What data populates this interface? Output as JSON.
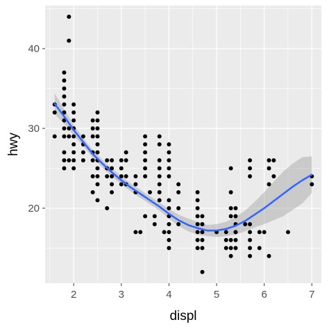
{
  "chart_data": {
    "type": "scatter",
    "title": "",
    "xlabel": "displ",
    "ylabel": "hwy",
    "xlim": [
      1.4,
      7.2
    ],
    "ylim": [
      10.6,
      45.4
    ],
    "x_ticks": [
      2,
      3,
      4,
      5,
      6,
      7
    ],
    "y_ticks": [
      20,
      30,
      40
    ],
    "grid": true,
    "legend": "none",
    "colors": {
      "panel_background": "#ebebeb",
      "grid": "#ffffff",
      "points": "#000000",
      "smooth_line": "#3366ff",
      "ribbon": "#999999"
    },
    "points": [
      [
        1.6,
        29
      ],
      [
        1.6,
        32
      ],
      [
        1.6,
        33
      ],
      [
        1.8,
        29
      ],
      [
        1.8,
        31
      ],
      [
        1.8,
        33
      ],
      [
        1.8,
        25
      ],
      [
        1.8,
        26
      ],
      [
        1.8,
        27
      ],
      [
        1.8,
        30
      ],
      [
        1.8,
        32
      ],
      [
        1.8,
        34
      ],
      [
        1.8,
        35
      ],
      [
        1.8,
        36
      ],
      [
        1.8,
        37
      ],
      [
        1.9,
        44
      ],
      [
        1.9,
        41
      ],
      [
        1.9,
        29
      ],
      [
        1.9,
        30
      ],
      [
        1.9,
        26
      ],
      [
        2.0,
        28
      ],
      [
        2.0,
        29
      ],
      [
        2.0,
        30
      ],
      [
        2.0,
        31
      ],
      [
        2.0,
        26
      ],
      [
        2.0,
        27
      ],
      [
        2.0,
        25
      ],
      [
        2.0,
        32
      ],
      [
        2.0,
        33
      ],
      [
        2.2,
        26
      ],
      [
        2.2,
        27
      ],
      [
        2.2,
        29
      ],
      [
        2.2,
        28
      ],
      [
        2.4,
        26
      ],
      [
        2.4,
        27
      ],
      [
        2.4,
        29
      ],
      [
        2.4,
        30
      ],
      [
        2.4,
        31
      ],
      [
        2.4,
        24
      ],
      [
        2.4,
        22
      ],
      [
        2.5,
        26
      ],
      [
        2.5,
        27
      ],
      [
        2.5,
        29
      ],
      [
        2.5,
        30
      ],
      [
        2.5,
        31
      ],
      [
        2.5,
        32
      ],
      [
        2.5,
        23
      ],
      [
        2.5,
        25
      ],
      [
        2.5,
        21
      ],
      [
        2.5,
        24
      ],
      [
        2.5,
        28
      ],
      [
        2.7,
        20
      ],
      [
        2.7,
        24
      ],
      [
        2.7,
        25
      ],
      [
        2.7,
        26
      ],
      [
        2.8,
        26
      ],
      [
        2.8,
        25
      ],
      [
        2.8,
        24
      ],
      [
        2.8,
        23
      ],
      [
        2.8,
        22
      ],
      [
        3.0,
        26
      ],
      [
        3.0,
        25
      ],
      [
        3.0,
        24
      ],
      [
        3.0,
        23
      ],
      [
        3.1,
        26
      ],
      [
        3.1,
        27
      ],
      [
        3.1,
        23
      ],
      [
        3.1,
        24
      ],
      [
        3.3,
        22
      ],
      [
        3.3,
        23
      ],
      [
        3.3,
        24
      ],
      [
        3.3,
        17
      ],
      [
        3.4,
        17
      ],
      [
        3.5,
        25
      ],
      [
        3.5,
        26
      ],
      [
        3.5,
        27
      ],
      [
        3.5,
        28
      ],
      [
        3.5,
        29
      ],
      [
        3.5,
        19
      ],
      [
        3.5,
        24
      ],
      [
        3.6,
        22
      ],
      [
        3.7,
        19
      ],
      [
        3.7,
        18
      ],
      [
        3.8,
        26
      ],
      [
        3.8,
        25
      ],
      [
        3.8,
        24
      ],
      [
        3.8,
        23
      ],
      [
        3.8,
        22
      ],
      [
        3.8,
        21
      ],
      [
        3.8,
        28
      ],
      [
        3.8,
        29
      ],
      [
        3.9,
        17
      ],
      [
        4.0,
        24
      ],
      [
        4.0,
        26
      ],
      [
        4.0,
        27
      ],
      [
        4.0,
        28
      ],
      [
        4.0,
        25
      ],
      [
        4.0,
        18
      ],
      [
        4.0,
        19
      ],
      [
        4.0,
        20
      ],
      [
        4.0,
        21
      ],
      [
        4.0,
        17
      ],
      [
        4.0,
        15
      ],
      [
        4.0,
        16
      ],
      [
        4.2,
        18
      ],
      [
        4.2,
        20
      ],
      [
        4.2,
        22
      ],
      [
        4.2,
        23
      ],
      [
        4.6,
        21
      ],
      [
        4.6,
        22
      ],
      [
        4.6,
        19
      ],
      [
        4.6,
        20
      ],
      [
        4.6,
        18
      ],
      [
        4.6,
        17
      ],
      [
        4.6,
        16
      ],
      [
        4.6,
        15
      ],
      [
        4.7,
        12
      ],
      [
        4.7,
        16
      ],
      [
        4.7,
        17
      ],
      [
        4.7,
        18
      ],
      [
        4.7,
        19
      ],
      [
        4.7,
        15
      ],
      [
        5.0,
        17
      ],
      [
        5.2,
        17
      ],
      [
        5.2,
        16
      ],
      [
        5.2,
        15
      ],
      [
        5.3,
        25
      ],
      [
        5.3,
        22
      ],
      [
        5.3,
        20
      ],
      [
        5.3,
        19
      ],
      [
        5.3,
        16
      ],
      [
        5.3,
        15
      ],
      [
        5.3,
        14
      ],
      [
        5.4,
        17
      ],
      [
        5.4,
        18
      ],
      [
        5.4,
        19
      ],
      [
        5.4,
        20
      ],
      [
        5.4,
        15
      ],
      [
        5.4,
        16
      ],
      [
        5.4,
        17
      ],
      [
        5.6,
        18
      ],
      [
        5.7,
        24
      ],
      [
        5.7,
        25
      ],
      [
        5.7,
        26
      ],
      [
        5.7,
        18
      ],
      [
        5.7,
        17
      ],
      [
        5.7,
        16
      ],
      [
        5.7,
        15
      ],
      [
        5.7,
        14
      ],
      [
        5.9,
        17
      ],
      [
        5.9,
        15
      ],
      [
        6.0,
        17
      ],
      [
        6.1,
        26
      ],
      [
        6.1,
        25
      ],
      [
        6.1,
        23
      ],
      [
        6.1,
        14
      ],
      [
        6.2,
        24
      ],
      [
        6.2,
        26
      ],
      [
        6.5,
        17
      ],
      [
        7.0,
        24
      ],
      [
        7.0,
        23
      ]
    ],
    "smooth_curve": [
      [
        1.6,
        33.1
      ],
      [
        1.8,
        31.5
      ],
      [
        2.0,
        29.8
      ],
      [
        2.2,
        28.3
      ],
      [
        2.4,
        26.8
      ],
      [
        2.6,
        25.6
      ],
      [
        2.8,
        24.5
      ],
      [
        3.0,
        23.5
      ],
      [
        3.2,
        22.6
      ],
      [
        3.4,
        21.8
      ],
      [
        3.6,
        21.0
      ],
      [
        3.8,
        20.2
      ],
      [
        4.0,
        19.3
      ],
      [
        4.2,
        18.5
      ],
      [
        4.4,
        17.9
      ],
      [
        4.6,
        17.5
      ],
      [
        4.8,
        17.2
      ],
      [
        5.0,
        17.2
      ],
      [
        5.2,
        17.4
      ],
      [
        5.4,
        17.8
      ],
      [
        5.6,
        18.4
      ],
      [
        5.8,
        19.2
      ],
      [
        6.0,
        20.0
      ],
      [
        6.2,
        20.9
      ],
      [
        6.4,
        21.8
      ],
      [
        6.6,
        22.7
      ],
      [
        6.8,
        23.5
      ],
      [
        7.0,
        24.2
      ]
    ],
    "ribbon_lower": [
      [
        1.6,
        31.8
      ],
      [
        1.8,
        30.6
      ],
      [
        2.0,
        29.1
      ],
      [
        2.2,
        27.8
      ],
      [
        2.4,
        26.3
      ],
      [
        2.6,
        25.1
      ],
      [
        2.8,
        24.0
      ],
      [
        3.0,
        23.0
      ],
      [
        3.2,
        22.1
      ],
      [
        3.4,
        21.3
      ],
      [
        3.6,
        20.5
      ],
      [
        3.8,
        19.7
      ],
      [
        4.0,
        18.7
      ],
      [
        4.2,
        17.8
      ],
      [
        4.4,
        17.1
      ],
      [
        4.6,
        16.7
      ],
      [
        4.8,
        16.5
      ],
      [
        5.0,
        16.4
      ],
      [
        5.2,
        16.5
      ],
      [
        5.4,
        16.7
      ],
      [
        5.6,
        17.1
      ],
      [
        5.8,
        17.6
      ],
      [
        6.0,
        18.0
      ],
      [
        6.2,
        18.5
      ],
      [
        6.4,
        19.0
      ],
      [
        6.6,
        19.8
      ],
      [
        6.8,
        20.6
      ],
      [
        7.0,
        21.9
      ]
    ],
    "ribbon_upper": [
      [
        1.6,
        34.4
      ],
      [
        1.8,
        32.4
      ],
      [
        2.0,
        30.5
      ],
      [
        2.2,
        28.8
      ],
      [
        2.4,
        27.3
      ],
      [
        2.6,
        26.1
      ],
      [
        2.8,
        25.0
      ],
      [
        3.0,
        24.0
      ],
      [
        3.2,
        23.1
      ],
      [
        3.4,
        22.3
      ],
      [
        3.6,
        21.5
      ],
      [
        3.8,
        20.7
      ],
      [
        4.0,
        19.9
      ],
      [
        4.2,
        19.2
      ],
      [
        4.4,
        18.7
      ],
      [
        4.6,
        18.3
      ],
      [
        4.8,
        17.9
      ],
      [
        5.0,
        18.0
      ],
      [
        5.2,
        18.3
      ],
      [
        5.4,
        18.9
      ],
      [
        5.6,
        19.7
      ],
      [
        5.8,
        20.8
      ],
      [
        6.0,
        22.0
      ],
      [
        6.2,
        23.3
      ],
      [
        6.4,
        24.6
      ],
      [
        6.6,
        25.6
      ],
      [
        6.8,
        26.4
      ],
      [
        7.0,
        26.5
      ]
    ]
  }
}
